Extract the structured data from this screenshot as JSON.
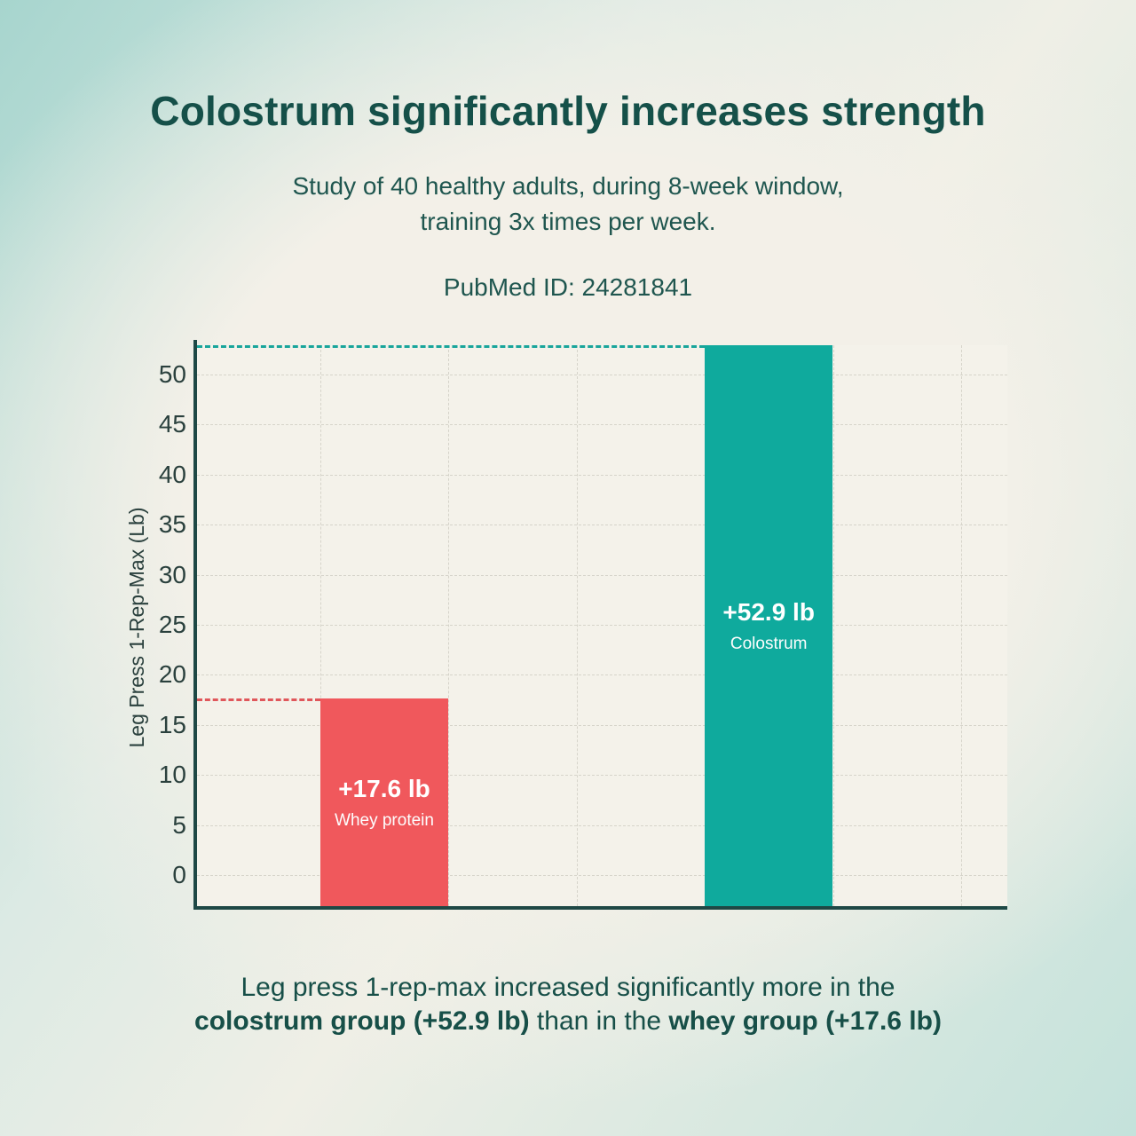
{
  "header": {
    "title": "Colostrum significantly increases strength",
    "subtitle_line1": "Study of 40 healthy adults, during 8-week window,",
    "subtitle_line2": "training 3x times per week.",
    "pubmed": "PubMed ID: 24281841"
  },
  "chart_data": {
    "type": "bar",
    "categories": [
      "Whey protein",
      "Colostrum"
    ],
    "values": [
      17.6,
      52.9
    ],
    "value_labels": [
      "+17.6 lb",
      "+52.9 lb"
    ],
    "bar_colors": [
      "#F0585C",
      "#0FAA9D"
    ],
    "refline_colors": [
      "#E0575B",
      "#18A59B"
    ],
    "ylabel": "Leg Press 1-Rep-Max (Lb)",
    "xlabel": "",
    "ylim": [
      0,
      50
    ],
    "yticks": [
      0,
      5,
      10,
      15,
      20,
      25,
      30,
      35,
      40,
      45,
      50
    ],
    "grid": true,
    "legend": "none",
    "reference_lines": [
      17.6,
      52.9
    ]
  },
  "caption": {
    "line1": "Leg press 1-rep-max increased significantly more in the",
    "line2_bold1": "colostrum group (+52.9 lb)",
    "line2_mid": " than in the ",
    "line2_bold2": "whey group (+17.6 lb)"
  },
  "palette": {
    "background_mint": "#A7D5CE",
    "background_cream": "#F3F0E8",
    "heading_text": "#155049",
    "axis_line": "#1E4845",
    "gridline": "#D6D4CA",
    "plot_background": "#F4F2EA",
    "bar_label_text": "#FFFFFF"
  }
}
